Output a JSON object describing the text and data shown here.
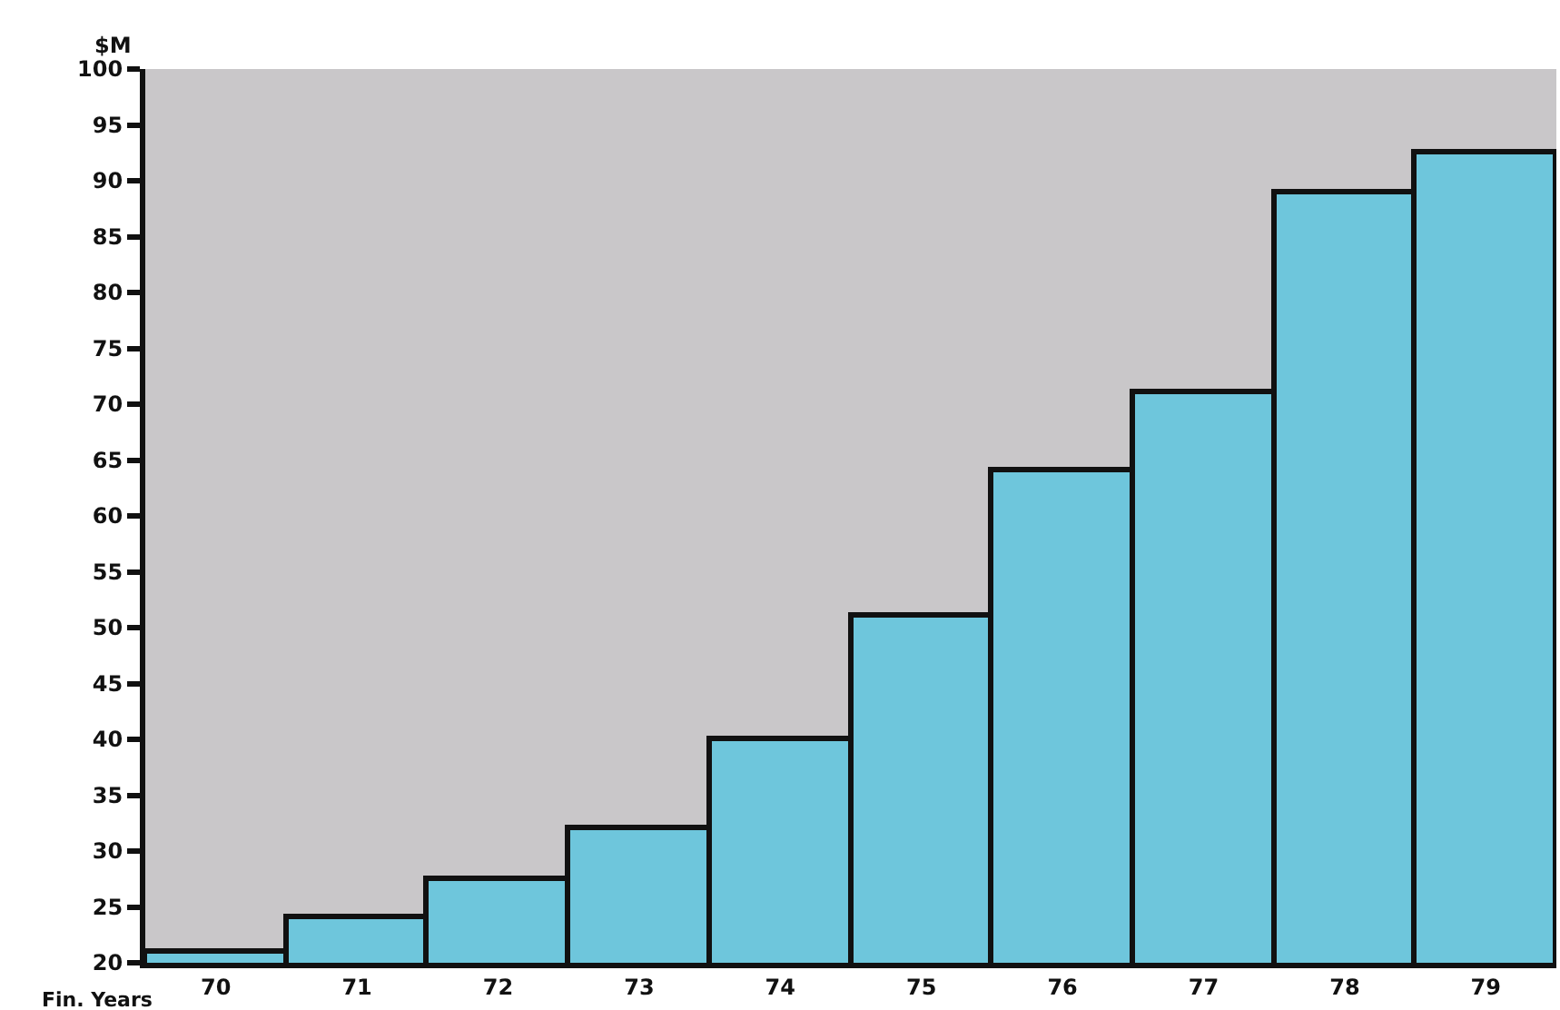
{
  "chart_data": {
    "type": "bar",
    "xlabel": "Fin. Years",
    "ylabel": "$M",
    "categories": [
      "70",
      "71",
      "72",
      "73",
      "74",
      "75",
      "76",
      "77",
      "78",
      "79"
    ],
    "values": [
      21,
      24,
      27.5,
      32,
      40,
      51,
      64,
      71,
      89,
      92.5
    ],
    "color": "#6ec6dc",
    "ylim": [
      20,
      100
    ],
    "yticks": [
      20,
      25,
      30,
      35,
      40,
      45,
      50,
      55,
      60,
      65,
      70,
      75,
      80,
      85,
      90,
      95,
      100
    ],
    "grid": false,
    "legend": false
  }
}
